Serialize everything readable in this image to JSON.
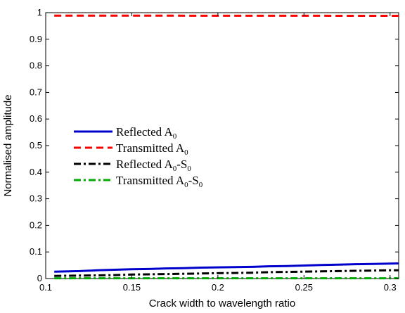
{
  "chart_data": {
    "type": "line",
    "xlabel": "Crack width to wavelength ratio",
    "ylabel": "Normalised amplitude",
    "xlim": [
      0.1,
      0.305
    ],
    "ylim": [
      0,
      1
    ],
    "x_ticks": [
      "0.1",
      "0.15",
      "0.2",
      "0.25",
      "0.3"
    ],
    "y_ticks": [
      "0",
      "0.1",
      "0.2",
      "0.3",
      "0.4",
      "0.5",
      "0.6",
      "0.7",
      "0.8",
      "0.9",
      "1"
    ],
    "grid": false,
    "legend_position": "center-left",
    "series": [
      {
        "name": "Reflected A0",
        "label_main": "Reflected A",
        "label_sub": "0",
        "label_tail": "",
        "color": "#0000cc",
        "dash": "solid",
        "x": [
          0.105,
          0.12,
          0.13,
          0.14,
          0.15,
          0.16,
          0.17,
          0.18,
          0.19,
          0.2,
          0.21,
          0.22,
          0.23,
          0.24,
          0.25,
          0.26,
          0.27,
          0.28,
          0.29,
          0.3,
          0.305
        ],
        "y": [
          0.026,
          0.028,
          0.031,
          0.033,
          0.035,
          0.036,
          0.038,
          0.039,
          0.041,
          0.042,
          0.043,
          0.044,
          0.046,
          0.047,
          0.049,
          0.051,
          0.052,
          0.054,
          0.055,
          0.056,
          0.057
        ]
      },
      {
        "name": "Transmitted A0",
        "label_main": "Transmitted A",
        "label_sub": "0",
        "label_tail": "",
        "color": "#ff0000",
        "dash": "dashed",
        "x": [
          0.105,
          0.305
        ],
        "y": [
          0.989,
          0.988
        ]
      },
      {
        "name": "Reflected A0-S0",
        "label_main": "Reflected A",
        "label_sub": "0",
        "label_tail": "-S",
        "label_sub2": "0",
        "color": "#000000",
        "dash": "dashdot",
        "x": [
          0.105,
          0.12,
          0.13,
          0.14,
          0.15,
          0.16,
          0.17,
          0.18,
          0.19,
          0.2,
          0.21,
          0.22,
          0.23,
          0.24,
          0.25,
          0.26,
          0.27,
          0.28,
          0.29,
          0.3,
          0.305
        ],
        "y": [
          0.01,
          0.011,
          0.012,
          0.013,
          0.015,
          0.016,
          0.017,
          0.018,
          0.019,
          0.02,
          0.021,
          0.022,
          0.024,
          0.025,
          0.026,
          0.027,
          0.028,
          0.029,
          0.03,
          0.031,
          0.031
        ]
      },
      {
        "name": "Transmitted A0-S0",
        "label_main": "Transmitted A",
        "label_sub": "0",
        "label_tail": "-S",
        "label_sub2": "0",
        "color": "#00aa00",
        "dash": "dashdot",
        "x": [
          0.105,
          0.305
        ],
        "y": [
          0.001,
          0.001
        ]
      }
    ]
  }
}
